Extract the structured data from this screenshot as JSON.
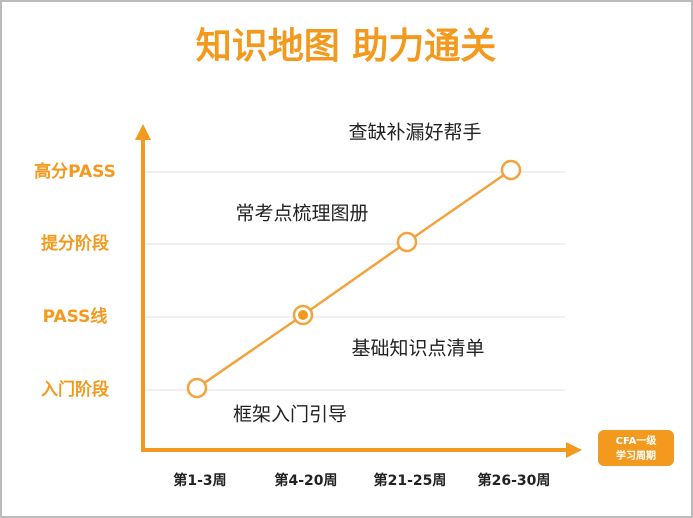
{
  "title": "知识地图  助力通关",
  "y_levels": [
    "入门阶段",
    "PASS线",
    "提分阶段",
    "高分PASS"
  ],
  "x_labels": [
    "第1-3周",
    "第4-20周",
    "第21-25周",
    "第26-30周"
  ],
  "steps": [
    "框架入门引导",
    "基础知识点清单",
    "常考点梳理图册",
    "查缺补漏好帮手"
  ],
  "badge": {
    "line1": "CFA一级",
    "line2": "学习周期"
  }
}
